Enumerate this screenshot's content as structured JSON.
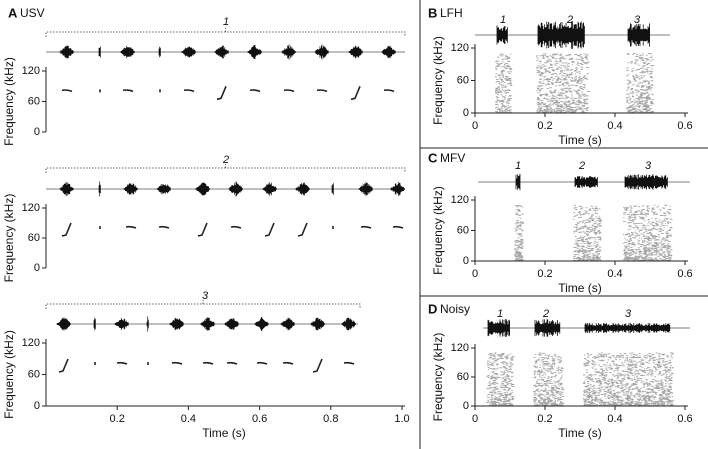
{
  "chart_data": [
    {
      "type": "spectrogram",
      "panel": "A",
      "title": "USV",
      "call_labels": [
        "1",
        "2",
        "3"
      ],
      "xlabel": "Time (s)",
      "ylabel": "Frequency (kHz)",
      "xlim": [
        0,
        1
      ],
      "xticks": [
        0.2,
        0.4,
        0.6,
        0.8,
        {
          "value": 1.0,
          "label": "1.0"
        }
      ],
      "ylim": [
        0,
        120
      ],
      "yticks": [
        0,
        60,
        120
      ]
    },
    {
      "type": "spectrogram",
      "panel": "B",
      "title": "LFH",
      "call_labels": [
        "1",
        "2",
        "3"
      ],
      "xlabel": "Time (s)",
      "ylabel": "Frequency (kHz)",
      "xlim": [
        0,
        0.6
      ],
      "xticks": [
        0,
        0.2,
        0.4,
        0.6
      ],
      "ylim": [
        0,
        120
      ],
      "yticks": [
        0,
        60,
        120
      ]
    },
    {
      "type": "spectrogram",
      "panel": "C",
      "title": "MFV",
      "call_labels": [
        "1",
        "2",
        "3"
      ],
      "xlabel": "Time (s)",
      "ylabel": "Frequency (kHz)",
      "xlim": [
        0,
        0.6
      ],
      "xticks": [
        0,
        0.2,
        0.4,
        0.6
      ],
      "ylim": [
        0,
        120
      ],
      "yticks": [
        0,
        60,
        120
      ]
    },
    {
      "type": "spectrogram",
      "panel": "D",
      "title": "Noisy",
      "call_labels": [
        "1",
        "2",
        "3"
      ],
      "xlabel": "Time (s)",
      "ylabel": "Frequency (kHz)",
      "xlim": [
        0,
        0.6
      ],
      "xticks": [
        0,
        0.2,
        0.4,
        0.6
      ],
      "ylim": [
        0,
        120
      ],
      "yticks": [
        0,
        60,
        120
      ]
    }
  ]
}
